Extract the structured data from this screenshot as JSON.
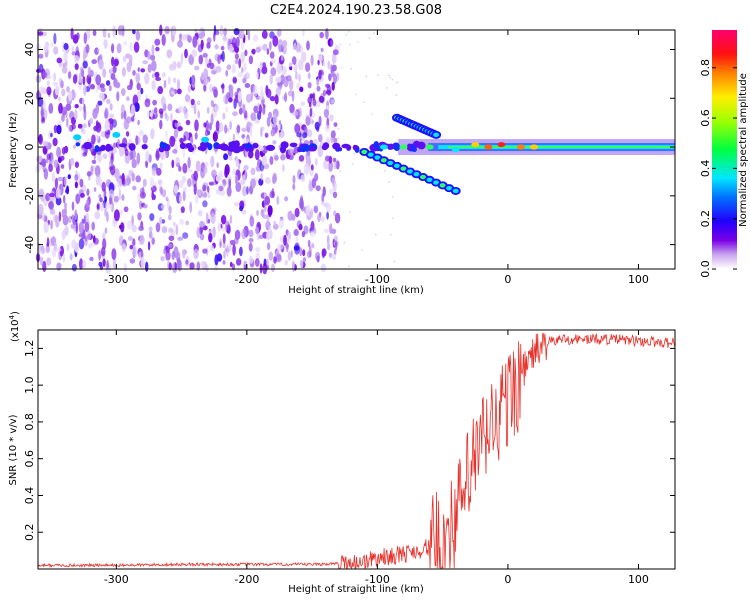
{
  "figure": {
    "title": "C2E4.2024.190.23.58.G08"
  },
  "chart_data": [
    {
      "type": "heatmap",
      "xlabel": "Height of straight line (km)",
      "ylabel": "Frequency (Hz)",
      "xlim": [
        -360,
        128
      ],
      "ylim": [
        -50,
        48
      ],
      "xticks": [
        -300,
        -200,
        -100,
        0,
        100
      ],
      "yticks": [
        -40,
        -20,
        0,
        20,
        40
      ],
      "colorbar": {
        "label": "Normalized spectral amplitude",
        "range": [
          0.0,
          0.95
        ],
        "ticks": [
          "0.0",
          "0.2",
          "0.4",
          "0.6",
          "0.8"
        ],
        "colormap": "rainbow (white-purple-blue-cyan-green-yellow-orange-red-magenta)"
      },
      "features": [
        {
          "name": "broadband noise region",
          "x_range": [
            -360,
            -130
          ],
          "freq_range": [
            -50,
            48
          ]
        },
        {
          "name": "carrier line",
          "x_range": [
            -130,
            128
          ],
          "freq_approx": 0
        },
        {
          "name": "upper branch",
          "x_range": [
            -85,
            -55
          ],
          "freq_range": [
            12,
            5
          ]
        },
        {
          "name": "lower branch",
          "x_range": [
            -110,
            -40
          ],
          "freq_range": [
            -2,
            -18
          ]
        }
      ]
    },
    {
      "type": "line",
      "xlabel": "Height of straight line (km)",
      "ylabel": "SNR (10 * v/v)",
      "y_multiplier": "(x10",
      "y_multiplier_exp": "4",
      "xlim": [
        -360,
        128
      ],
      "ylim": [
        0,
        1.3
      ],
      "xticks": [
        -300,
        -200,
        -100,
        0,
        100
      ],
      "yticks": [
        0.2,
        0.4,
        0.6,
        0.8,
        1.0,
        1.2
      ],
      "ytick_labels": [
        "0.2",
        "0.4",
        "0.6",
        "0.8",
        "1.0",
        "1.2"
      ],
      "color": "#e8302a",
      "series": [
        {
          "x": [
            -360,
            -300,
            -250,
            -200,
            -150,
            -125,
            -110,
            -100,
            -90,
            -80,
            -70,
            -60,
            -50,
            -45,
            -40,
            -35,
            -30,
            -25,
            -20,
            -15,
            -10,
            -5,
            0,
            5,
            10,
            15,
            20,
            25,
            30,
            40,
            50,
            60,
            80,
            100,
            128
          ],
          "y": [
            0.02,
            0.02,
            0.025,
            0.025,
            0.025,
            0.03,
            0.04,
            0.06,
            0.07,
            0.08,
            0.1,
            0.12,
            0.16,
            0.2,
            0.28,
            0.38,
            0.5,
            0.6,
            0.68,
            0.75,
            0.8,
            0.86,
            0.92,
            0.98,
            1.05,
            1.12,
            1.18,
            1.21,
            1.23,
            1.25,
            1.25,
            1.25,
            1.25,
            1.24,
            1.23
          ]
        }
      ]
    }
  ]
}
